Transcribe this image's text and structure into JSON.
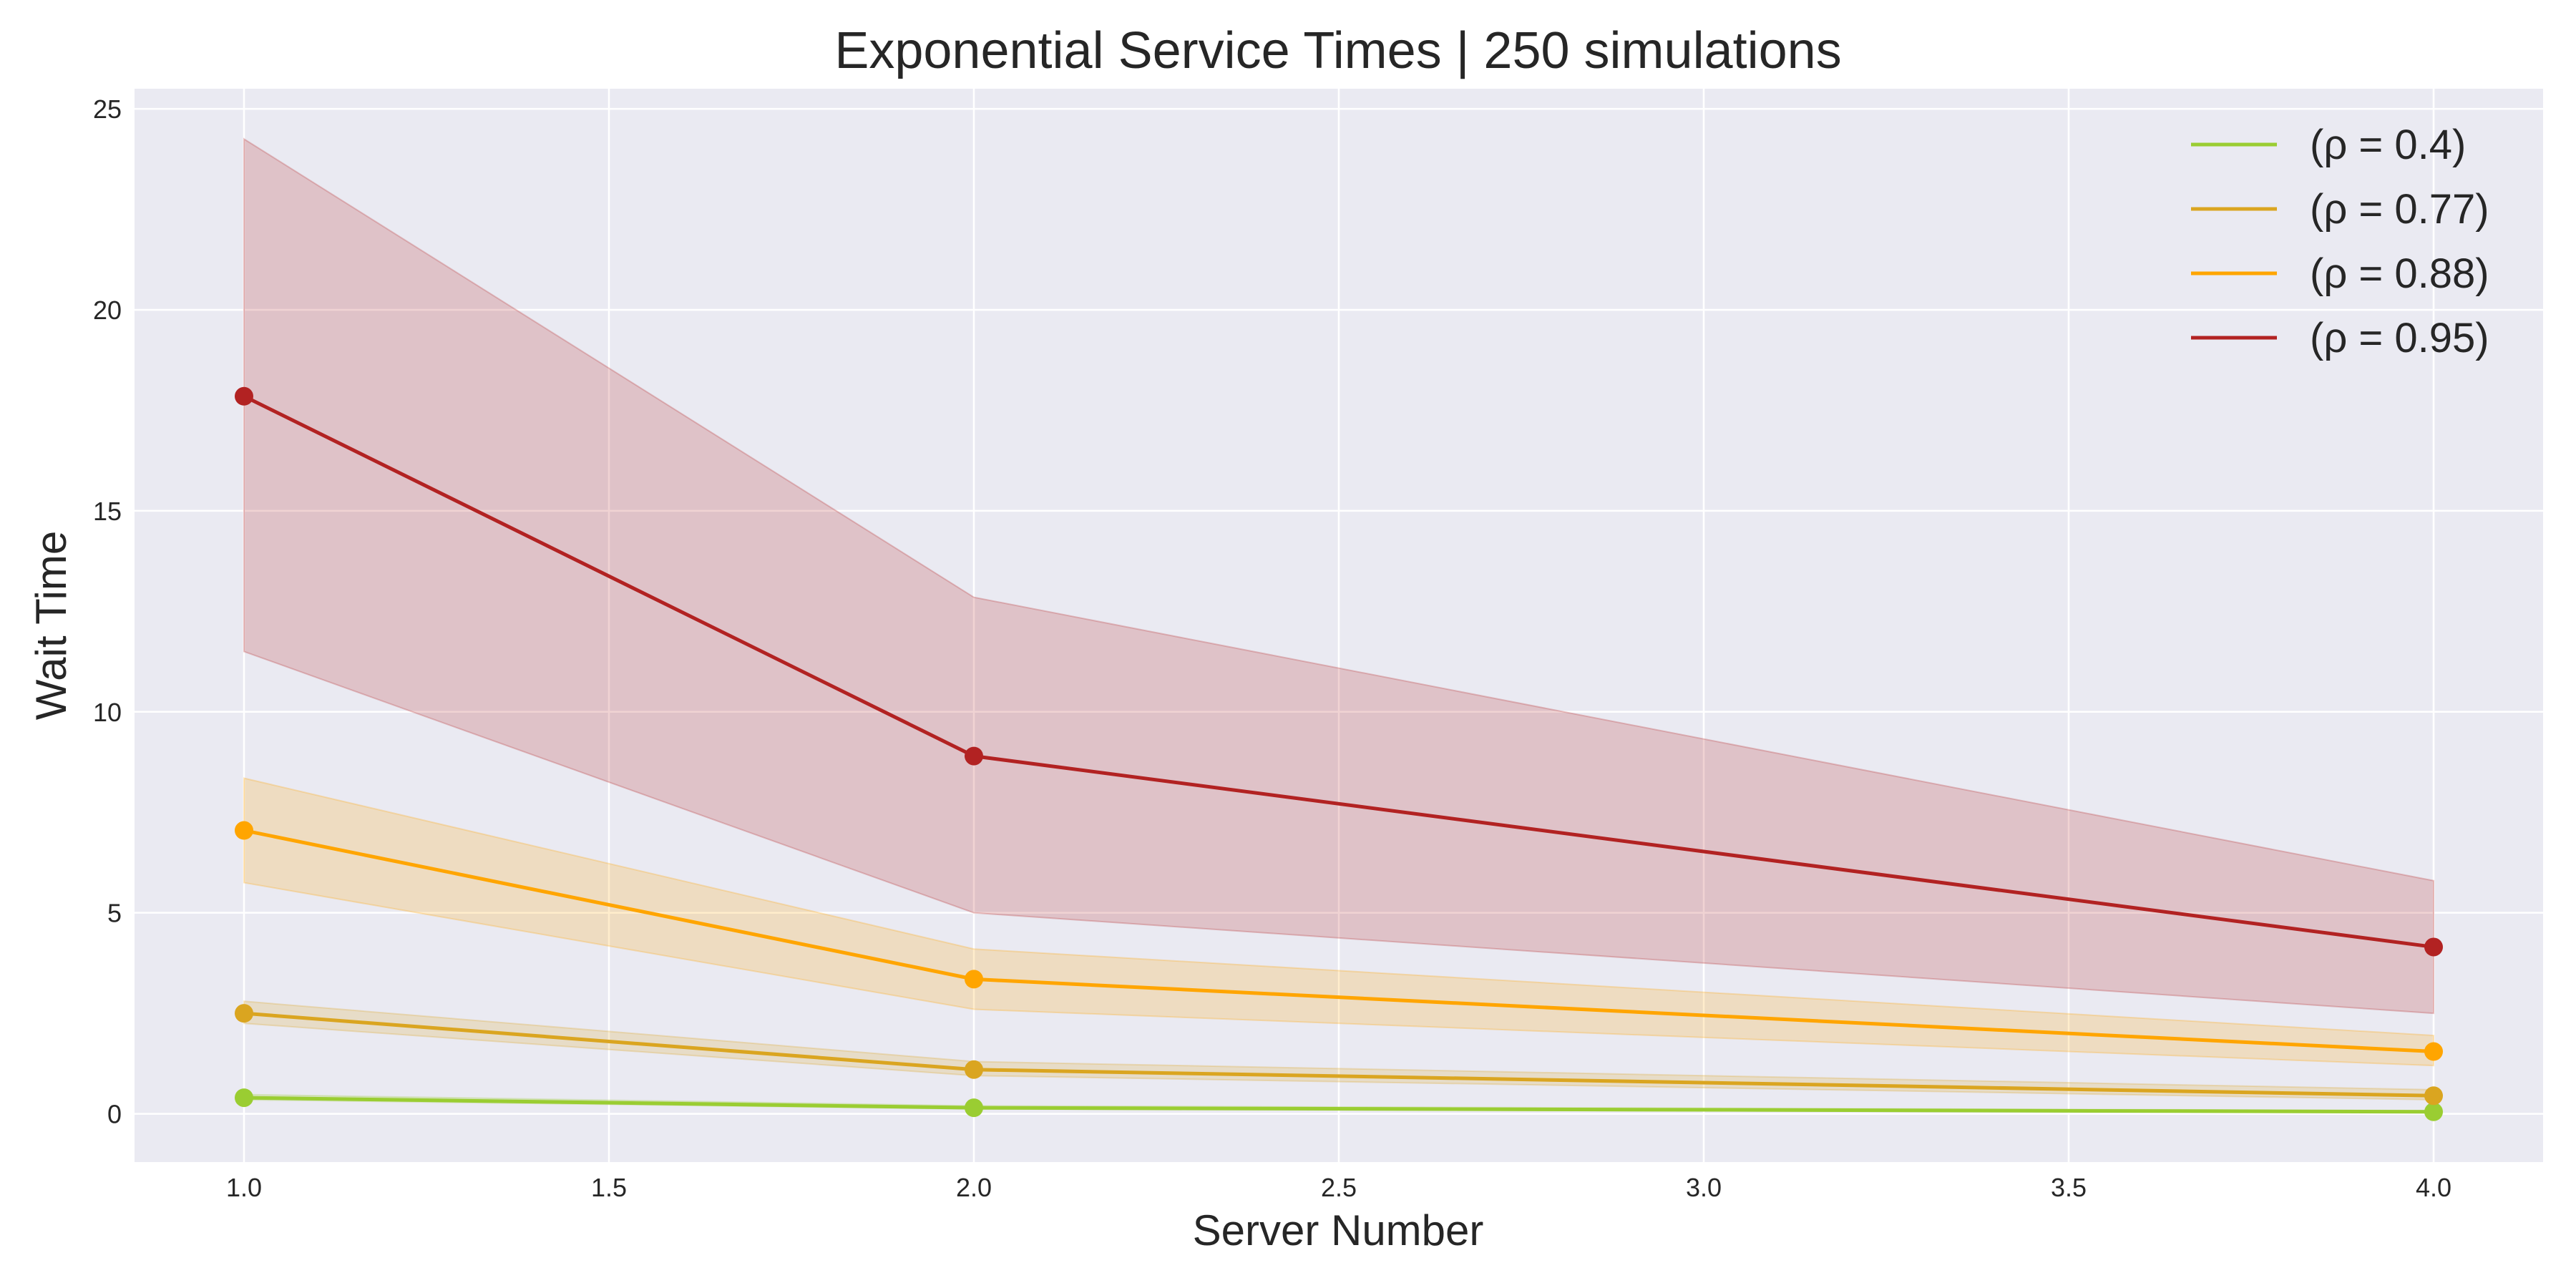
{
  "chart_data": {
    "type": "line",
    "title": "Exponential Service Times | 250 simulations",
    "xlabel": "Server Number",
    "ylabel": "Wait Time",
    "xlim": [
      0.85,
      4.15
    ],
    "ylim": [
      -1.2,
      25.5
    ],
    "xticks": [
      1.0,
      1.5,
      2.0,
      2.5,
      3.0,
      3.5,
      4.0
    ],
    "xtick_labels": [
      "1.0",
      "1.5",
      "2.0",
      "2.5",
      "3.0",
      "3.5",
      "4.0"
    ],
    "yticks": [
      0,
      5,
      10,
      15,
      20,
      25
    ],
    "ytick_labels": [
      "0",
      "5",
      "10",
      "15",
      "20",
      "25"
    ],
    "grid": true,
    "legend_position": "top-right",
    "x": [
      1,
      2,
      4
    ],
    "series": [
      {
        "name": "(ρ = 0.4)",
        "color": "#9acd32",
        "values": [
          0.4,
          0.15,
          0.05
        ],
        "lower": [
          0.35,
          0.12,
          0.03
        ],
        "upper": [
          0.48,
          0.2,
          0.08
        ]
      },
      {
        "name": "(ρ = 0.77)",
        "color": "#daa520",
        "values": [
          2.5,
          1.1,
          0.45
        ],
        "lower": [
          2.25,
          0.95,
          0.35
        ],
        "upper": [
          2.8,
          1.3,
          0.6
        ]
      },
      {
        "name": "(ρ = 0.88)",
        "color": "#ffa500",
        "values": [
          7.05,
          3.35,
          1.55
        ],
        "lower": [
          5.75,
          2.6,
          1.2
        ],
        "upper": [
          8.35,
          4.1,
          1.95
        ]
      },
      {
        "name": "(ρ = 0.95)",
        "color": "#b22222",
        "values": [
          17.85,
          8.9,
          4.15
        ],
        "lower": [
          11.5,
          5.0,
          2.5
        ],
        "upper": [
          24.25,
          12.85,
          5.8
        ]
      }
    ]
  }
}
